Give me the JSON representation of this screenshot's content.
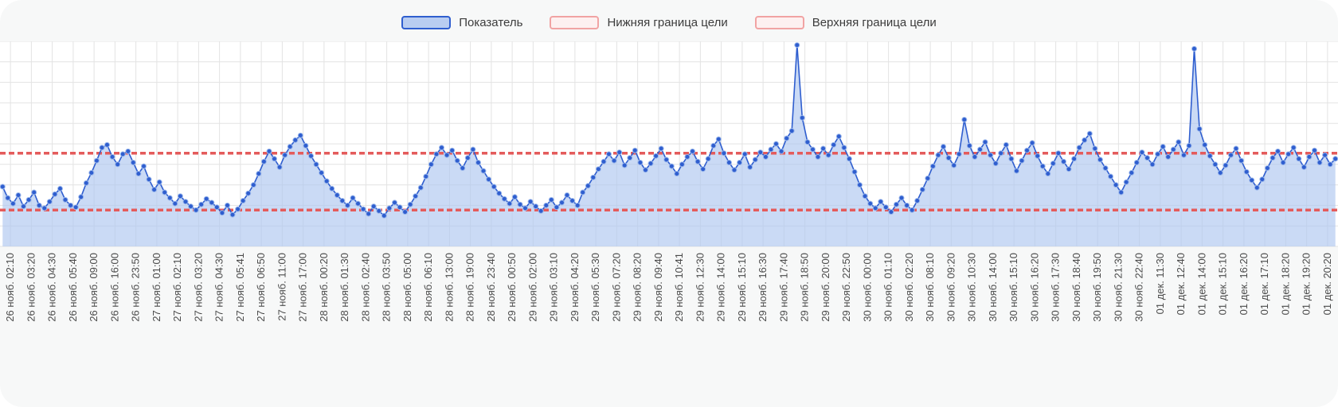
{
  "legend": {
    "items": [
      {
        "label": "Показатель",
        "type": "series",
        "fill": "#b9cdf1",
        "border": "#2f5ecf"
      },
      {
        "label": "Нижняя граница цели",
        "type": "lower_bound",
        "fill": "#fdf0f0",
        "border": "#f1a3a3"
      },
      {
        "label": "Верхняя граница цели",
        "type": "upper_bound",
        "fill": "#fdf0f0",
        "border": "#f1a3a3"
      }
    ]
  },
  "colors": {
    "series_line": "#2f5ecf",
    "series_fill": "#aec6ef",
    "point_fill": "#2f5ecf",
    "point_ring": "#9db9ec",
    "bound_line": "#e45b5b",
    "grid_line": "#e3e3e3",
    "tick_text": "#4a4a4a",
    "plot_bg": "#ffffff",
    "card_bg": "#f7f8f8"
  },
  "chart_data": {
    "type": "line",
    "title": "",
    "series_name": "Показатель",
    "legend_position": "top",
    "grid": true,
    "x_tick_rotation": -90,
    "ylim": [
      0,
      22
    ],
    "lower_bound": 3.9,
    "upper_bound": 10.0,
    "lower_bound_label": "Нижняя граница цели",
    "upper_bound_label": "Верхняя граница цели",
    "points_per_category": 4,
    "categories": [
      "26 нояб. 02:10",
      "26 нояб. 03:20",
      "26 нояб. 04:30",
      "26 нояб. 05:40",
      "26 нояб. 09:00",
      "26 нояб. 16:00",
      "26 нояб. 23:50",
      "27 нояб. 01:00",
      "27 нояб. 02:10",
      "27 нояб. 03:20",
      "27 нояб. 04:30",
      "27 нояб. 05:41",
      "27 нояб. 06:50",
      "27 нояб. 11:00",
      "27 нояб. 17:00",
      "28 нояб. 00:20",
      "28 нояб. 01:30",
      "28 нояб. 02:40",
      "28 нояб. 03:50",
      "28 нояб. 05:00",
      "28 нояб. 06:10",
      "28 нояб. 13:00",
      "28 нояб. 19:00",
      "28 нояб. 23:40",
      "29 нояб. 00:50",
      "29 нояб. 02:00",
      "29 нояб. 03:10",
      "29 нояб. 04:20",
      "29 нояб. 05:30",
      "29 нояб. 07:20",
      "29 нояб. 08:20",
      "29 нояб. 09:40",
      "29 нояб. 10:41",
      "29 нояб. 12:30",
      "29 нояб. 14:00",
      "29 нояб. 15:10",
      "29 нояб. 16:30",
      "29 нояб. 17:40",
      "29 нояб. 18:50",
      "29 нояб. 20:00",
      "29 нояб. 22:50",
      "30 нояб. 00:00",
      "30 нояб. 01:10",
      "30 нояб. 02:20",
      "30 нояб. 08:10",
      "30 нояб. 09:20",
      "30 нояб. 10:30",
      "30 нояб. 14:00",
      "30 нояб. 15:10",
      "30 нояб. 16:20",
      "30 нояб. 17:30",
      "30 нояб. 18:40",
      "30 нояб. 19:50",
      "30 нояб. 21:30",
      "30 нояб. 22:40",
      "01 дек. 11:30",
      "01 дек. 12:40",
      "01 дек. 14:00",
      "01 дек. 15:10",
      "01 дек. 16:20",
      "01 дек. 17:10",
      "01 дек. 18:20",
      "01 дек. 19:20",
      "01 дек. 20:20"
    ],
    "values": [
      6.4,
      5.2,
      4.6,
      5.5,
      4.3,
      5.0,
      5.8,
      4.4,
      4.1,
      4.8,
      5.6,
      6.2,
      5.0,
      4.4,
      4.2,
      5.3,
      6.8,
      7.9,
      9.2,
      10.6,
      10.9,
      9.6,
      8.8,
      9.9,
      10.2,
      9.0,
      7.8,
      8.6,
      7.2,
      6.1,
      6.9,
      5.8,
      5.2,
      4.6,
      5.4,
      4.8,
      4.3,
      3.9,
      4.5,
      5.1,
      4.7,
      4.2,
      3.6,
      4.4,
      3.4,
      4.0,
      4.9,
      5.7,
      6.6,
      7.8,
      9.1,
      10.2,
      9.4,
      8.5,
      9.8,
      10.7,
      11.4,
      11.9,
      10.8,
      9.7,
      8.8,
      7.9,
      7.0,
      6.2,
      5.5,
      4.9,
      4.4,
      5.2,
      4.6,
      4.0,
      3.5,
      4.3,
      3.8,
      3.3,
      4.1,
      4.7,
      4.2,
      3.7,
      4.5,
      5.4,
      6.3,
      7.5,
      8.8,
      9.9,
      10.6,
      9.8,
      10.3,
      9.2,
      8.4,
      9.5,
      10.4,
      9.0,
      8.1,
      7.2,
      6.4,
      5.7,
      5.1,
      4.6,
      5.3,
      4.5,
      4.1,
      4.8,
      4.3,
      3.8,
      4.4,
      5.0,
      4.2,
      4.7,
      5.5,
      4.9,
      4.4,
      5.8,
      6.5,
      7.4,
      8.3,
      9.1,
      9.9,
      9.2,
      10.1,
      8.7,
      9.5,
      10.3,
      9.0,
      8.2,
      8.9,
      9.7,
      10.5,
      9.3,
      8.6,
      7.8,
      8.8,
      9.6,
      10.2,
      9.1,
      8.3,
      9.4,
      10.8,
      11.5,
      10.0,
      9.0,
      8.2,
      9.0,
      9.9,
      8.5,
      9.3,
      10.1,
      9.6,
      10.4,
      11.0,
      10.2,
      11.6,
      12.4,
      21.6,
      13.8,
      11.2,
      10.4,
      9.6,
      10.5,
      9.8,
      10.9,
      11.8,
      10.6,
      9.4,
      8.0,
      6.6,
      5.4,
      4.6,
      4.1,
      4.8,
      4.2,
      3.7,
      4.5,
      5.2,
      4.4,
      3.9,
      4.9,
      6.1,
      7.3,
      8.6,
      9.8,
      10.7,
      9.5,
      8.7,
      9.9,
      13.6,
      10.8,
      9.6,
      10.4,
      11.2,
      9.8,
      8.9,
      10.0,
      10.9,
      9.4,
      8.1,
      9.2,
      10.3,
      11.1,
      9.7,
      8.6,
      7.8,
      8.9,
      10.0,
      9.1,
      8.3,
      9.4,
      10.6,
      11.4,
      12.1,
      10.5,
      9.3,
      8.4,
      7.5,
      6.6,
      5.8,
      6.9,
      7.9,
      9.0,
      10.1,
      9.5,
      8.8,
      9.9,
      10.7,
      9.6,
      10.4,
      11.2,
      9.8,
      10.8,
      21.2,
      12.6,
      10.9,
      9.7,
      8.8,
      7.9,
      8.7,
      9.8,
      10.5,
      9.2,
      8.0,
      7.1,
      6.3,
      7.2,
      8.4,
      9.5,
      10.2,
      9.0,
      9.9,
      10.6,
      9.4,
      8.5,
      9.6,
      10.3,
      9.0,
      9.8,
      8.8,
      9.4
    ]
  }
}
